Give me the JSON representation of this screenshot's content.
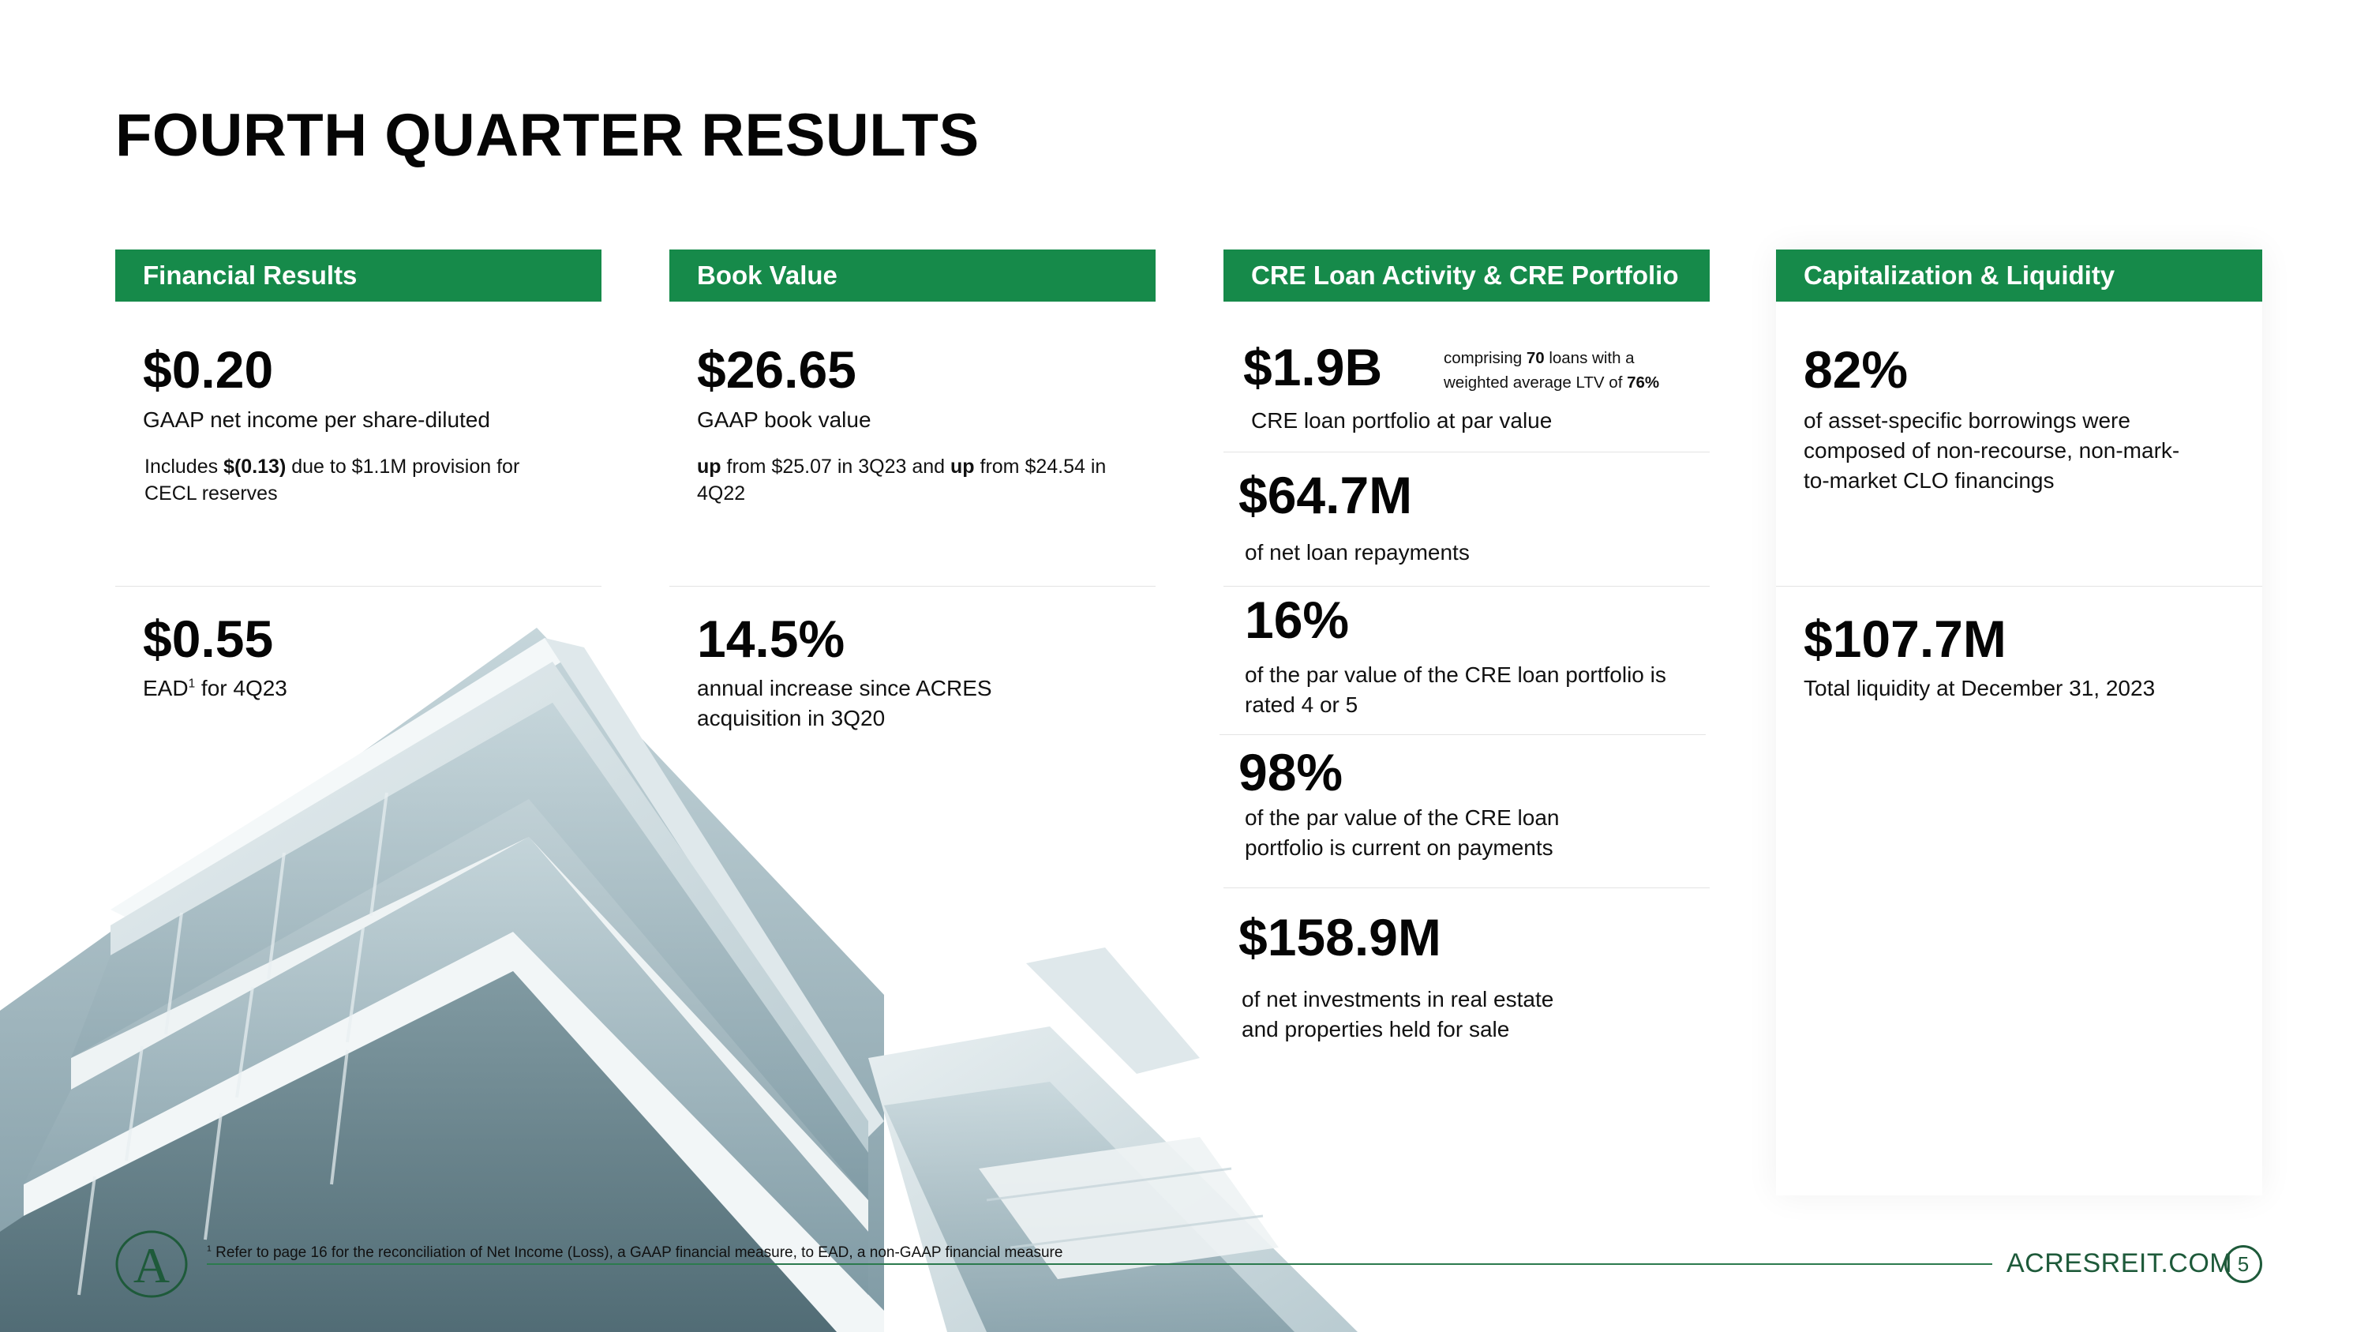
{
  "title": "FOURTH QUARTER RESULTS",
  "columns": {
    "financial": {
      "header": "Financial Results",
      "m1_value": "$0.20",
      "m1_label": "GAAP net income per share-diluted",
      "m1_note_pre": "Includes ",
      "m1_note_bold": "$(0.13)",
      "m1_note_post": " due to $1.1M provision for CECL reserves",
      "m2_value": "$0.55",
      "m2_label_pre": "EAD",
      "m2_label_sup": "1",
      "m2_label_post": " for 4Q23"
    },
    "book": {
      "header": "Book Value",
      "m1_value": "$26.65",
      "m1_label": "GAAP book value",
      "m1_note_b1": "up",
      "m1_note_t1": " from $25.07 in 3Q23 and ",
      "m1_note_b2": "up",
      "m1_note_t2": " from $24.54 in 4Q22",
      "m2_value": "14.5%",
      "m2_label": "annual increase since ACRES acquisition in 3Q20"
    },
    "cre": {
      "header": "CRE Loan Activity & CRE Portfolio",
      "m1_value": "$1.9B",
      "m1_side_t1": "comprising ",
      "m1_side_b1": "70",
      "m1_side_t2": " loans with a weighted average LTV of ",
      "m1_side_b2": "76%",
      "m1_label": "CRE loan portfolio at par value",
      "m2_value": "$64.7M",
      "m2_label": "of net loan repayments",
      "m3_value": "16%",
      "m3_label": "of the par value of the CRE loan portfolio is rated 4 or 5",
      "m4_value": "98%",
      "m4_label": "of the par value of the CRE loan portfolio is current on payments",
      "m5_value": "$158.9M",
      "m5_label": "of net investments in real estate and properties held for sale"
    },
    "capital": {
      "header": "Capitalization & Liquidity",
      "m1_value": "82%",
      "m1_label": "of asset-specific borrowings were composed of non-recourse, non-mark-to-market CLO financings",
      "m2_value": "$107.7M",
      "m2_label": "Total liquidity at December 31, 2023"
    }
  },
  "footer": {
    "footnote_sup": "1",
    "footnote_text": "Refer to page 16 for the reconciliation of Net Income (Loss), a GAAP financial measure, to EAD, a non-GAAP financial measure",
    "site": "ACRESREIT.COM",
    "page": "5",
    "logo_letter": "A"
  },
  "colors": {
    "header_green": "#168a4a",
    "brand_dark_green": "#1e5a3a",
    "building_tint": "#8fa9b2"
  }
}
